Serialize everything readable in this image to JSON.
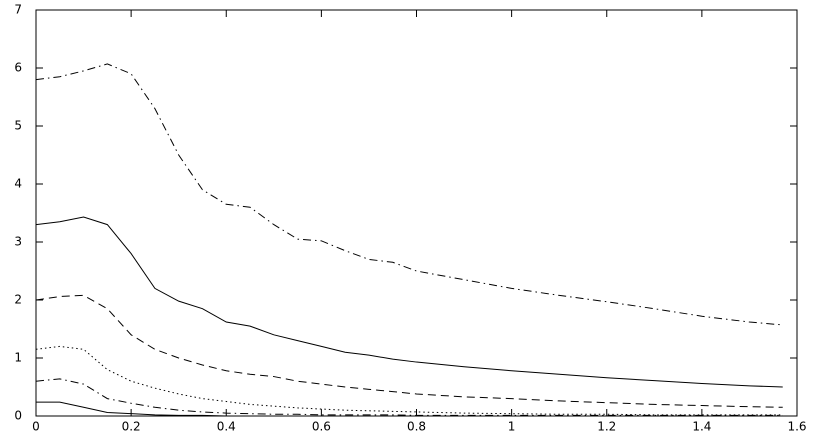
{
  "chart_data": {
    "type": "line",
    "x": [
      0,
      0.05,
      0.1,
      0.15,
      0.2,
      0.25,
      0.3,
      0.35,
      0.4,
      0.45,
      0.5,
      0.55,
      0.6,
      0.65,
      0.7,
      0.75,
      0.8,
      0.9,
      1.0,
      1.1,
      1.2,
      1.3,
      1.4,
      1.5,
      1.57
    ],
    "series": [
      {
        "color": "#000000",
        "dash": "dashdot",
        "values": [
          5.8,
          5.85,
          5.95,
          6.07,
          5.9,
          5.3,
          4.5,
          3.9,
          3.65,
          3.6,
          3.3,
          3.05,
          3.02,
          2.85,
          2.7,
          2.65,
          2.5,
          2.35,
          2.2,
          2.08,
          1.97,
          1.85,
          1.72,
          1.62,
          1.57
        ]
      },
      {
        "color": "#000000",
        "dash": "solid",
        "values": [
          3.3,
          3.35,
          3.43,
          3.3,
          2.8,
          2.2,
          1.98,
          1.85,
          1.62,
          1.55,
          1.4,
          1.3,
          1.2,
          1.1,
          1.05,
          0.98,
          0.93,
          0.85,
          0.78,
          0.72,
          0.66,
          0.61,
          0.56,
          0.52,
          0.5
        ]
      },
      {
        "color": "#000000",
        "dash": "dashed",
        "values": [
          2.0,
          2.06,
          2.08,
          1.85,
          1.4,
          1.15,
          1.0,
          0.88,
          0.78,
          0.72,
          0.68,
          0.6,
          0.55,
          0.5,
          0.46,
          0.42,
          0.38,
          0.33,
          0.3,
          0.26,
          0.23,
          0.2,
          0.18,
          0.16,
          0.15
        ]
      },
      {
        "color": "#000000",
        "dash": "dotted",
        "values": [
          1.15,
          1.2,
          1.15,
          0.8,
          0.6,
          0.48,
          0.38,
          0.3,
          0.25,
          0.2,
          0.17,
          0.14,
          0.12,
          0.1,
          0.09,
          0.08,
          0.07,
          0.05,
          0.04,
          0.03,
          0.03,
          0.02,
          0.02,
          0.02,
          0.02
        ]
      },
      {
        "color": "#000000",
        "dash": "dashdot",
        "values": [
          0.6,
          0.64,
          0.55,
          0.3,
          0.22,
          0.15,
          0.1,
          0.07,
          0.05,
          0.04,
          0.03,
          0.03,
          0.02,
          0.02,
          0.02,
          0.02,
          0.01,
          0.01,
          0.01,
          0.01,
          0.01,
          0.01,
          0.01,
          0.01,
          0.01
        ]
      },
      {
        "color": "#000000",
        "dash": "solid",
        "values": [
          0.24,
          0.24,
          0.15,
          0.06,
          0.04,
          0.02,
          0.01,
          0.01,
          0,
          0,
          0,
          0,
          0,
          0,
          0,
          0,
          0,
          0,
          0,
          0,
          0,
          0,
          0,
          0,
          0
        ]
      }
    ],
    "xlim": [
      0,
      1.6
    ],
    "xticks": [
      0,
      0.2,
      0.4,
      0.6,
      0.8,
      1,
      1.2,
      1.4,
      1.6
    ],
    "ylim": [
      0,
      7
    ],
    "yticks": [
      0,
      1,
      2,
      3,
      4,
      5,
      6,
      7
    ],
    "grid": false
  }
}
